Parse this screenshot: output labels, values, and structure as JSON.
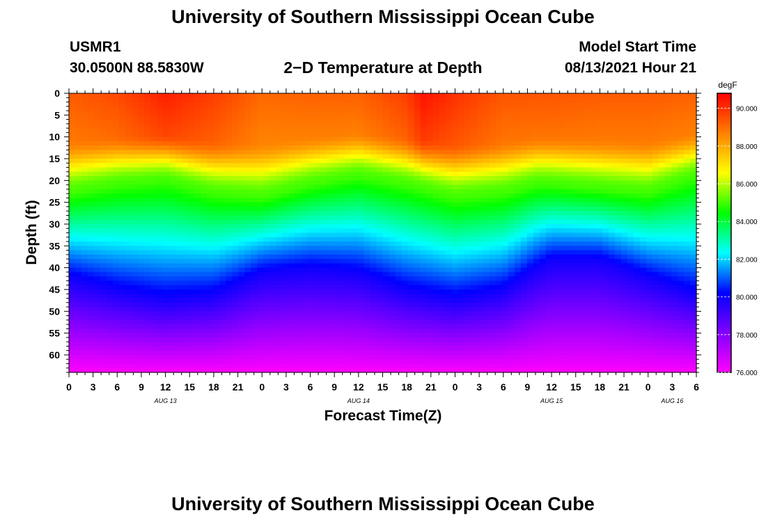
{
  "header": {
    "title": "University of Southern Mississippi Ocean Cube",
    "station": "USMR1",
    "location": "30.0500N  88.5830W",
    "model_label": "Model Start Time",
    "model_time": "08/13/2021 Hour 21",
    "footer_title": "University of Southern Mississippi Ocean Cube"
  },
  "chart_data": {
    "type": "heatmap",
    "title": "2−D Temperature at Depth",
    "xlabel": "Forecast Time(Z)",
    "ylabel": "Depth (ft)",
    "x_hours_range": [
      0,
      78
    ],
    "x_tick_step_hours": 3,
    "x_tick_labels": [
      "0",
      "3",
      "6",
      "9",
      "12",
      "15",
      "18",
      "21",
      "0",
      "3",
      "6",
      "9",
      "12",
      "15",
      "18",
      "21",
      "0",
      "3",
      "6",
      "9",
      "12",
      "15",
      "18",
      "21",
      "0",
      "3",
      "6"
    ],
    "date_labels": [
      {
        "hour": 12,
        "text": "AUG 13"
      },
      {
        "hour": 36,
        "text": "AUG 14"
      },
      {
        "hour": 60,
        "text": "AUG 15"
      },
      {
        "hour": 75,
        "text": "AUG 16"
      }
    ],
    "ylim": [
      0,
      64
    ],
    "y_tick_labels": [
      "0",
      "5",
      "10",
      "15",
      "20",
      "25",
      "30",
      "35",
      "40",
      "45",
      "50",
      "55",
      "60"
    ],
    "y_tick_values": [
      0,
      5,
      10,
      15,
      20,
      25,
      30,
      35,
      40,
      45,
      50,
      55,
      60
    ],
    "colorbar": {
      "unit": "degF",
      "range": [
        76.0,
        90.8
      ],
      "tick_labels": [
        "90.000",
        "88.000",
        "86.000",
        "84.000",
        "82.000",
        "80.000",
        "78.000",
        "76.000"
      ],
      "tick_values": [
        90,
        88,
        86,
        84,
        82,
        80,
        78,
        76
      ],
      "colors": [
        "#ff00ff",
        "#8000ff",
        "#0000ff",
        "#00ffff",
        "#00ff00",
        "#ffff00",
        "#ff8000",
        "#ff0000"
      ]
    },
    "surface_temp_degF": {
      "hours": [
        0,
        6,
        12,
        18,
        24,
        30,
        36,
        42,
        44,
        48,
        54,
        60,
        66,
        72,
        78
      ],
      "values": [
        89.3,
        89.6,
        90.3,
        89.8,
        89.1,
        89.2,
        89.2,
        89.8,
        90.5,
        90.0,
        89.4,
        89.4,
        89.3,
        89.3,
        89.2
      ]
    },
    "isotherm_85_depth_ft": {
      "hours": [
        0,
        6,
        12,
        18,
        24,
        30,
        36,
        42,
        48,
        54,
        58,
        60,
        66,
        72,
        78
      ],
      "values": [
        23,
        21,
        20,
        23,
        24,
        21,
        19,
        21,
        24,
        23,
        21,
        21,
        22,
        23,
        19
      ]
    },
    "isotherm_80_depth_ft": {
      "hours": [
        0,
        6,
        12,
        18,
        24,
        30,
        36,
        42,
        48,
        54,
        58,
        60,
        66,
        72,
        78
      ],
      "values": [
        42,
        45,
        47,
        46,
        41,
        40,
        41,
        45,
        47,
        45,
        40,
        38,
        38,
        42,
        46
      ]
    },
    "bottom_temp_degF": 76.0
  }
}
